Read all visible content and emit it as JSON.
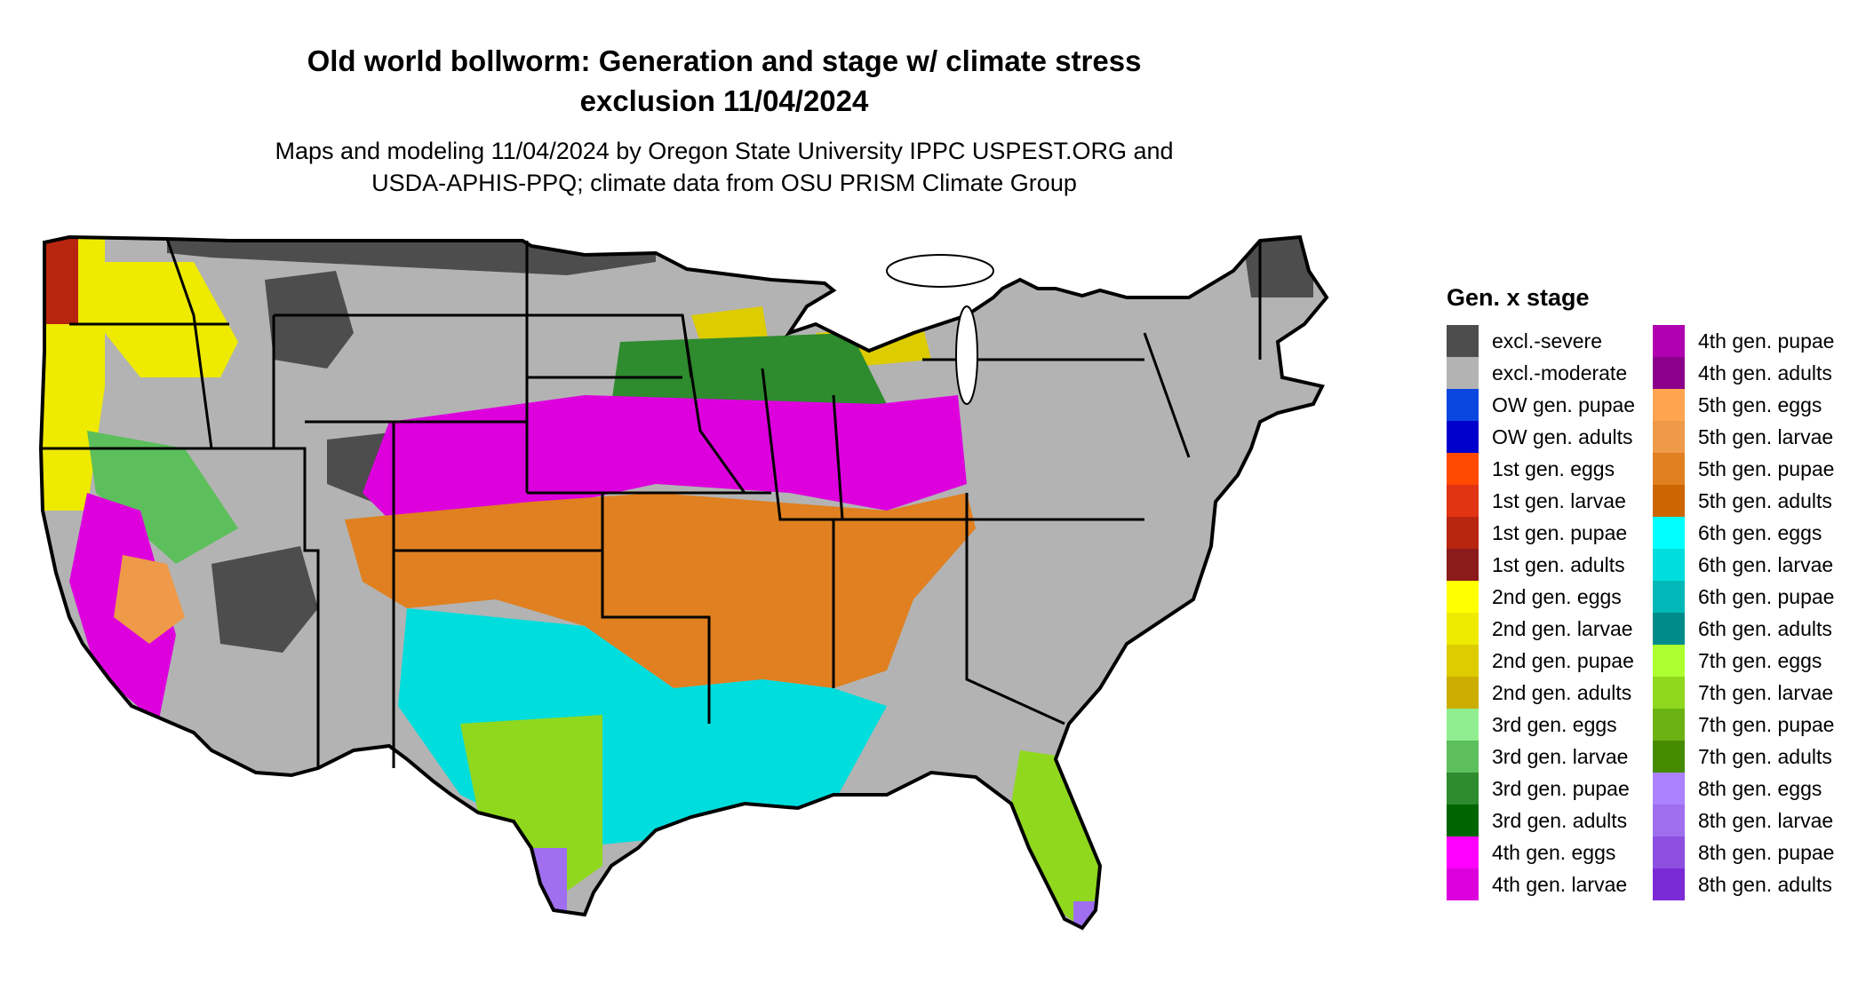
{
  "title": {
    "line1": "Old world bollworm: Generation and stage w/ climate stress",
    "line2": "exclusion 11/04/2024"
  },
  "subtitle": {
    "line1": "Maps and modeling 11/04/2024 by Oregon State University IPPC USPEST.ORG and",
    "line2": "USDA-APHIS-PPQ; climate data from OSU PRISM Climate Group"
  },
  "legend": {
    "title": "Gen. x stage",
    "items": [
      {
        "label": "excl.-severe",
        "color": "#4d4d4d"
      },
      {
        "label": "excl.-moderate",
        "color": "#b3b3b3"
      },
      {
        "label": "OW gen. pupae",
        "color": "#0a47e0"
      },
      {
        "label": "OW gen. adults",
        "color": "#0000cc"
      },
      {
        "label": "1st gen. eggs",
        "color": "#ff4a00"
      },
      {
        "label": "1st gen. larvae",
        "color": "#e03412"
      },
      {
        "label": "1st gen. pupae",
        "color": "#b8250f"
      },
      {
        "label": "1st gen. adults",
        "color": "#8b1a1a"
      },
      {
        "label": "2nd gen. eggs",
        "color": "#ffff00"
      },
      {
        "label": "2nd gen. larvae",
        "color": "#eeea00"
      },
      {
        "label": "2nd gen. pupae",
        "color": "#ddcc00"
      },
      {
        "label": "2nd gen. adults",
        "color": "#ccad00"
      },
      {
        "label": "3rd gen. eggs",
        "color": "#90ee90"
      },
      {
        "label": "3rd gen. larvae",
        "color": "#5cbf5c"
      },
      {
        "label": "3rd gen. pupae",
        "color": "#2e8b2e"
      },
      {
        "label": "3rd gen. adults",
        "color": "#006400"
      },
      {
        "label": "4th gen. eggs",
        "color": "#ff00ff"
      },
      {
        "label": "4th gen. larvae",
        "color": "#dd00dd"
      },
      {
        "label": "4th gen. pupae",
        "color": "#b000b0"
      },
      {
        "label": "4th gen. adults",
        "color": "#8b008b"
      },
      {
        "label": "5th gen. eggs",
        "color": "#ffa54f"
      },
      {
        "label": "5th gen. larvae",
        "color": "#ee9a49"
      },
      {
        "label": "5th gen. pupae",
        "color": "#e08020"
      },
      {
        "label": "5th gen. adults",
        "color": "#cd6600"
      },
      {
        "label": "6th gen. eggs",
        "color": "#00ffff"
      },
      {
        "label": "6th gen. larvae",
        "color": "#00dddd"
      },
      {
        "label": "6th gen. pupae",
        "color": "#00b8b8"
      },
      {
        "label": "6th gen. adults",
        "color": "#008b8b"
      },
      {
        "label": "7th gen. eggs",
        "color": "#adff2f"
      },
      {
        "label": "7th gen. larvae",
        "color": "#8fd81e"
      },
      {
        "label": "7th gen. pupae",
        "color": "#6bb312"
      },
      {
        "label": "7th gen. adults",
        "color": "#458b00"
      },
      {
        "label": "8th gen. eggs",
        "color": "#ab82ff"
      },
      {
        "label": "8th gen. larvae",
        "color": "#9f6ff0"
      },
      {
        "label": "8th gen. pupae",
        "color": "#8c4fe0"
      },
      {
        "label": "8th gen. adults",
        "color": "#7a2bd6"
      }
    ]
  },
  "map_regions": [
    {
      "region": "northern-plains-rockies",
      "category": "excl.-moderate"
    },
    {
      "region": "upper-midwest-great-lakes",
      "category": "excl.-moderate"
    },
    {
      "region": "northeast",
      "category": "excl.-moderate"
    },
    {
      "region": "northern-border-highlands",
      "category": "excl.-severe"
    },
    {
      "region": "pacific-northwest-coast",
      "category": "1st gen. pupae"
    },
    {
      "region": "california-oregon-interior",
      "category": "2nd gen. larvae"
    },
    {
      "region": "ohio-valley",
      "category": "3rd gen. pupae"
    },
    {
      "region": "southern-missouri-kentucky-virginia",
      "category": "4th gen. larvae"
    },
    {
      "region": "deep-south-central-texas",
      "category": "5th gen. pupae"
    },
    {
      "region": "gulf-coast",
      "category": "6th gen. larvae"
    },
    {
      "region": "south-texas-florida",
      "category": "7th gen. larvae"
    },
    {
      "region": "south-florida-keys",
      "category": "8th gen. larvae"
    }
  ]
}
